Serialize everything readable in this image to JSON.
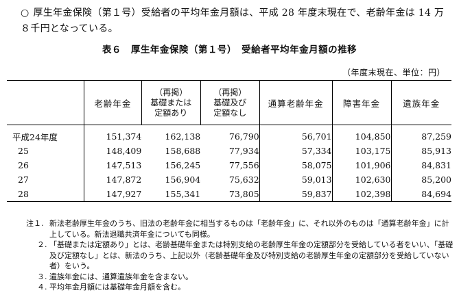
{
  "intro": {
    "bullet": "○",
    "text": "厚生年金保険（第１号）受給者の平均年金月額は、平成 28 年度末現在で、老齢年金は 14 万８千円となっている。"
  },
  "table_title": "表６　厚生年金保険（第１号）　受給者平均年金月額の推移",
  "unit_note": "（年度末現在、単位：円）",
  "headers": {
    "rougo": "老齢年金",
    "sub1": [
      "（再掲）",
      "基礎または",
      "定額あり"
    ],
    "sub2": [
      "（再掲）",
      "基礎及び",
      "定額なし"
    ],
    "tsusan": "通算老齢年金",
    "shogai": "障害年金",
    "izoku": "遺族年金"
  },
  "rows": [
    {
      "label": "平成24年度",
      "vals": [
        "151,374",
        "162,138",
        "76,790",
        "56,701",
        "104,850",
        "87,259"
      ]
    },
    {
      "label": "25",
      "vals": [
        "148,409",
        "158,688",
        "77,934",
        "57,334",
        "103,175",
        "85,913"
      ]
    },
    {
      "label": "26",
      "vals": [
        "147,513",
        "156,245",
        "77,556",
        "58,075",
        "101,906",
        "84,831"
      ]
    },
    {
      "label": "27",
      "vals": [
        "147,872",
        "156,904",
        "75,632",
        "59,013",
        "102,630",
        "85,200"
      ]
    },
    {
      "label": "28",
      "vals": [
        "147,927",
        "155,341",
        "73,805",
        "59,837",
        "102,398",
        "84,694"
      ]
    }
  ],
  "notes": [
    {
      "marker": "注１.",
      "text": "新法老齢厚生年金のうち、旧法の老齢年金に相当するものは「老齢年金」に、それ以外のものは「通算老齢年金」に計上している。新法退職共済年金についても同様。"
    },
    {
      "marker": "２.",
      "text": "「基礎または定額あり」とは、老齢基礎年金または特別支給の老齢厚生年金の定額部分を受給している者をいい、「基礎及び定額なし」とは、新法のうち、上記以外（老齢基礎年金及び特別支給の老齢厚生年金の定額部分を受給していない者）をいう。"
    },
    {
      "marker": "３.",
      "text": "遺族年金には、通算遺族年金を含まない。"
    },
    {
      "marker": "４.",
      "text": "平均年金月額には基礎年金月額を含む。"
    }
  ]
}
